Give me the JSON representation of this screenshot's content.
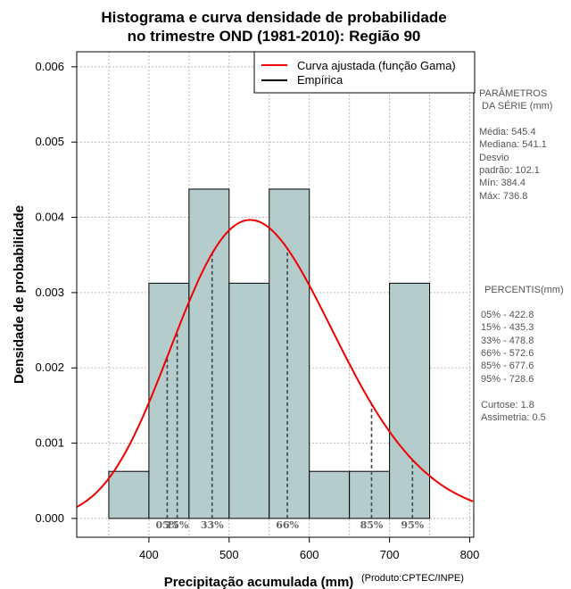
{
  "chart_data": {
    "type": "histogram",
    "title_lines": [
      "Histograma e curva densidade de probabilidade",
      "no trimestre OND (1981-2010): Região 90"
    ],
    "xlabel": "Precipitação acumulada (mm)",
    "ylabel": "Densidade de probabilidade",
    "credit": "(Produto:CPTEC/INPE)",
    "xlim": [
      310,
      805
    ],
    "ylim": [
      -0.00025,
      0.0062
    ],
    "x_ticks": [
      400,
      500,
      600,
      700,
      800
    ],
    "y_ticks": [
      0.0,
      0.001,
      0.002,
      0.003,
      0.004,
      0.005,
      0.006
    ],
    "y_tick_labels": [
      "0.000",
      "0.001",
      "0.002",
      "0.003",
      "0.004",
      "0.005",
      "0.006"
    ],
    "grid": true,
    "bins": [
      {
        "start": 350,
        "end": 400,
        "density": 0.000625
      },
      {
        "start": 400,
        "end": 450,
        "density": 0.003125
      },
      {
        "start": 450,
        "end": 500,
        "density": 0.004375
      },
      {
        "start": 500,
        "end": 550,
        "density": 0.003125
      },
      {
        "start": 550,
        "end": 600,
        "density": 0.004375
      },
      {
        "start": 600,
        "end": 650,
        "density": 0.000625
      },
      {
        "start": 650,
        "end": 700,
        "density": 0.000625
      },
      {
        "start": 700,
        "end": 750,
        "density": 0.003125
      }
    ],
    "fitted_curve": {
      "name": "Curva ajustada (função Gama)",
      "distribution": "gamma",
      "mean": 545.4,
      "sd": 102.1,
      "color": "#ee0000"
    },
    "bar_color": "#b4cccb",
    "percentiles": [
      {
        "label": "05%",
        "value": 422.8
      },
      {
        "label": "15%",
        "value": 435.3
      },
      {
        "label": "33%",
        "value": 478.8
      },
      {
        "label": "66%",
        "value": 572.6
      },
      {
        "label": "85%",
        "value": 677.6
      },
      {
        "label": "95%",
        "value": 728.6
      }
    ],
    "legend": [
      {
        "label": "Curva ajustada (função Gama)",
        "color": "#ee0000"
      },
      {
        "label": "Empírica",
        "color": "#000000"
      }
    ],
    "legend_position": "top-right"
  },
  "side_panel": {
    "params_title_1": "PARÂMETROS",
    "params_title_2": "DA SÉRIE (mm)",
    "stats": [
      "Média:  545.4",
      "Mediana:  541.1",
      "Desvio",
      "padrão:  102.1",
      "Mín:  384.4",
      "Máx:  736.8"
    ],
    "pct_title": "PERCENTIS(mm)",
    "pct_lines": [
      "05% -  422.8",
      "15% -  435.3",
      "33% -  478.8",
      "66% -  572.6",
      "85% -  677.6",
      "95% -  728.6"
    ],
    "shape_lines": [
      "Curtose:  1.8",
      "Assimetria:  0.5"
    ]
  }
}
